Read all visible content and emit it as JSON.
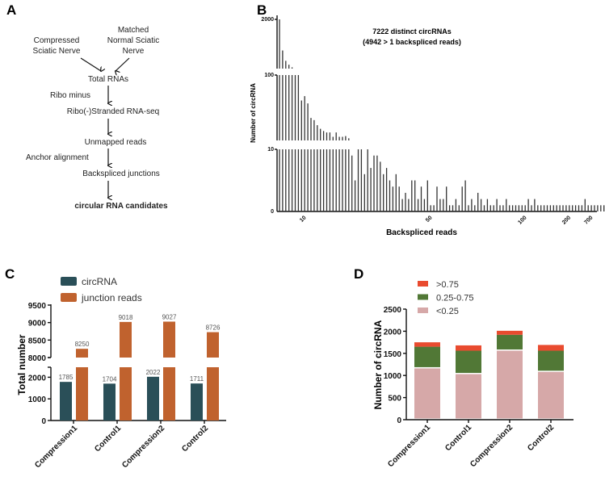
{
  "panels": {
    "a": {
      "letter": "A",
      "source_left": [
        "Compressed",
        "Sciatic Nerve"
      ],
      "source_right": [
        "Matched",
        "Normal Sciatic",
        "Nerve"
      ],
      "steps": [
        "Total RNAs",
        "Ribo(-)Stranded RNA-seq",
        "Unmapped reads",
        "Backspliced junctions",
        "circular RNA candidates"
      ],
      "side_labels": [
        "Ribo minus",
        "Anchor alignment"
      ]
    },
    "b": {
      "letter": "B"
    },
    "c": {
      "letter": "C"
    },
    "d": {
      "letter": "D"
    }
  },
  "chart_data": [
    {
      "panel": "B",
      "type": "bar",
      "title": "7222 distinct circRNAs",
      "subtitle": "(4942 > 1 backspliced reads)",
      "xlabel": "Backspliced reads",
      "ylabel": "Number of circRNA",
      "y_axis_break": true,
      "y_segments": [
        [
          0,
          10
        ],
        [
          10,
          100
        ],
        [
          100,
          2000
        ]
      ],
      "y_ticks": [
        "0",
        "10",
        "100",
        "2000"
      ],
      "x_ticks": [
        {
          "label": "10",
          "at_bar_index": 8
        },
        {
          "label": "50",
          "at_bar_index": 48
        },
        {
          "label": "100",
          "at_bar_index": 78
        },
        {
          "label": "200",
          "at_bar_index": 92
        },
        {
          "label": "700",
          "at_bar_index": 99
        }
      ],
      "values": [
        2100,
        800,
        400,
        250,
        150,
        100,
        100,
        65,
        71,
        61,
        41,
        38,
        31,
        26,
        23,
        21,
        21,
        15,
        21,
        15,
        15,
        16,
        13,
        9,
        5,
        10,
        10,
        6,
        10,
        7,
        9,
        9,
        8,
        6,
        7,
        5,
        4,
        6,
        4,
        2,
        3,
        2,
        5,
        5,
        2,
        4,
        2,
        5,
        1,
        1,
        4,
        2,
        2,
        4,
        1,
        1,
        2,
        1,
        4,
        5,
        1,
        2,
        1,
        3,
        2,
        1,
        2,
        1,
        1,
        2,
        1,
        1,
        2,
        1,
        1,
        1,
        1,
        1,
        1,
        2,
        1,
        2,
        1,
        1,
        1,
        1,
        1,
        1,
        1,
        1,
        1,
        1,
        1,
        1,
        1,
        1,
        1,
        2,
        1,
        1,
        1,
        1,
        1,
        1,
        1,
        1,
        1
      ]
    },
    {
      "panel": "C",
      "type": "bar",
      "ylabel": "Total number",
      "y_axis_break": true,
      "y_ticks_low": [
        0,
        1000,
        2000
      ],
      "y_ticks_high": [
        8000,
        8500,
        9000,
        9500
      ],
      "categories": [
        "Compression1",
        "Control1",
        "Compression2",
        "Control2"
      ],
      "series": [
        {
          "name": "circRNA",
          "color": "#2a4f58",
          "values": [
            1785,
            1704,
            2022,
            1711
          ]
        },
        {
          "name": "junction reads",
          "color": "#c0622e",
          "values": [
            8250,
            9018,
            9027,
            8726
          ]
        }
      ],
      "legend": "top-left"
    },
    {
      "panel": "D",
      "type": "bar",
      "stacked": true,
      "ylabel": "Number of circRNA",
      "ylim": [
        0,
        2500
      ],
      "y_ticks": [
        0,
        500,
        1000,
        1500,
        2000,
        2500
      ],
      "categories": [
        "Compression1",
        "Control1",
        "Compression2",
        "Control2"
      ],
      "series": [
        {
          "name": "<0.25",
          "color": "#d6a8a8",
          "values": [
            1160,
            1030,
            1560,
            1080
          ]
        },
        {
          "name": "0.25-0.75",
          "color": "#517836",
          "values": [
            490,
            530,
            360,
            480
          ]
        },
        {
          "name": ">0.75",
          "color": "#e94b2f",
          "values": [
            100,
            120,
            90,
            130
          ]
        }
      ],
      "legend": "top-left"
    }
  ]
}
